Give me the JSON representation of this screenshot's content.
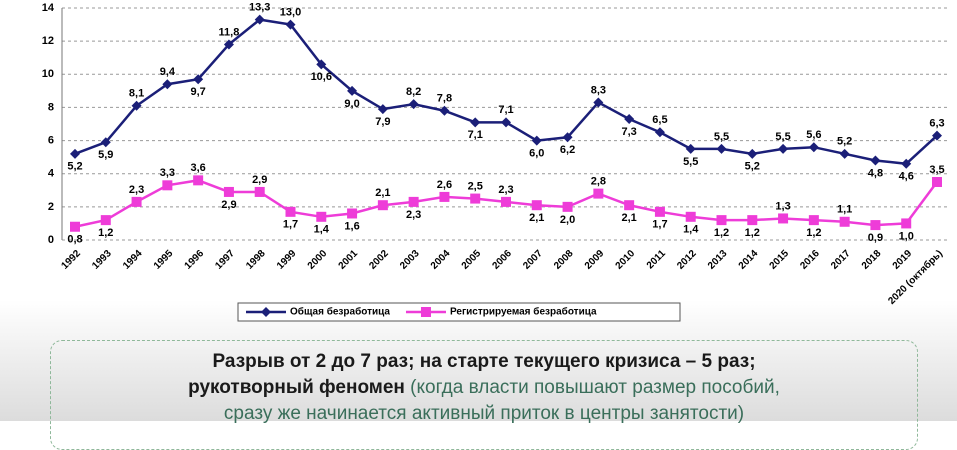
{
  "chart_data": {
    "type": "line",
    "categories": [
      "1992",
      "1993",
      "1994",
      "1995",
      "1996",
      "1997",
      "1998",
      "1999",
      "2000",
      "2001",
      "2002",
      "2003",
      "2004",
      "2005",
      "2006",
      "2007",
      "2008",
      "2009",
      "2010",
      "2011",
      "2012",
      "2013",
      "2014",
      "2015",
      "2016",
      "2017",
      "2018",
      "2019",
      "2020 (октябрь)"
    ],
    "series": [
      {
        "name": "Общая безработица",
        "color": "#1b1f78",
        "marker": "diamond",
        "values": [
          5.2,
          5.9,
          8.1,
          9.4,
          9.7,
          11.8,
          13.3,
          13.0,
          10.6,
          9.0,
          7.9,
          8.2,
          7.8,
          7.1,
          7.1,
          6.0,
          6.2,
          8.3,
          7.3,
          6.5,
          5.5,
          5.5,
          5.2,
          5.5,
          5.6,
          5.2,
          4.8,
          4.6,
          6.3
        ],
        "value_labels": [
          "5,2",
          "5,9",
          "8,1",
          "9,4",
          "9,7",
          "11,8",
          "13,3",
          "13,0",
          "10,6",
          "9,0",
          "7,9",
          "8,2",
          "7,8",
          "7,1",
          "7,1",
          "6,0",
          "6,2",
          "8,3",
          "7,3",
          "6,5",
          "5,5",
          "5,5",
          "5,2",
          "5,5",
          "5,6",
          "5,2",
          "4,8",
          "4,6",
          "6,3"
        ]
      },
      {
        "name": "Регистрируемая безработица",
        "color": "#ee3cd8",
        "marker": "square",
        "values": [
          0.8,
          1.2,
          2.3,
          3.3,
          3.6,
          2.9,
          2.9,
          1.7,
          1.4,
          1.6,
          2.1,
          2.3,
          2.6,
          2.5,
          2.3,
          2.1,
          2.0,
          2.8,
          2.1,
          1.7,
          1.4,
          1.2,
          1.2,
          1.3,
          1.2,
          1.1,
          0.9,
          1.0,
          3.5
        ],
        "value_labels": [
          "0,8",
          "1,2",
          "2,3",
          "3,3",
          "3,6",
          "2,9",
          "2,9",
          "1,7",
          "1,4",
          "1,6",
          "2,1",
          "2,3",
          "2,6",
          "2,5",
          "2,3",
          "2,1",
          "2,0",
          "2,8",
          "2,1",
          "1,7",
          "1,4",
          "1,2",
          "1,2",
          "1,3",
          "1,2",
          "1,1",
          "0,9",
          "1,0",
          "3,5"
        ]
      }
    ],
    "ylim": [
      0,
      14
    ],
    "yticks": [
      0,
      2,
      4,
      6,
      8,
      10,
      12,
      14
    ],
    "grid": true,
    "legend": "bottom"
  },
  "note": {
    "line1": "Разрыв от 2 до 7 раз; на старте текущего кризиса – 5 раз;",
    "line2_bold": "рукотворный феномен",
    "line2_rest": " (когда власти повышают размер пособий,",
    "line3": "сразу же начинается активный приток в центры занятости)"
  }
}
